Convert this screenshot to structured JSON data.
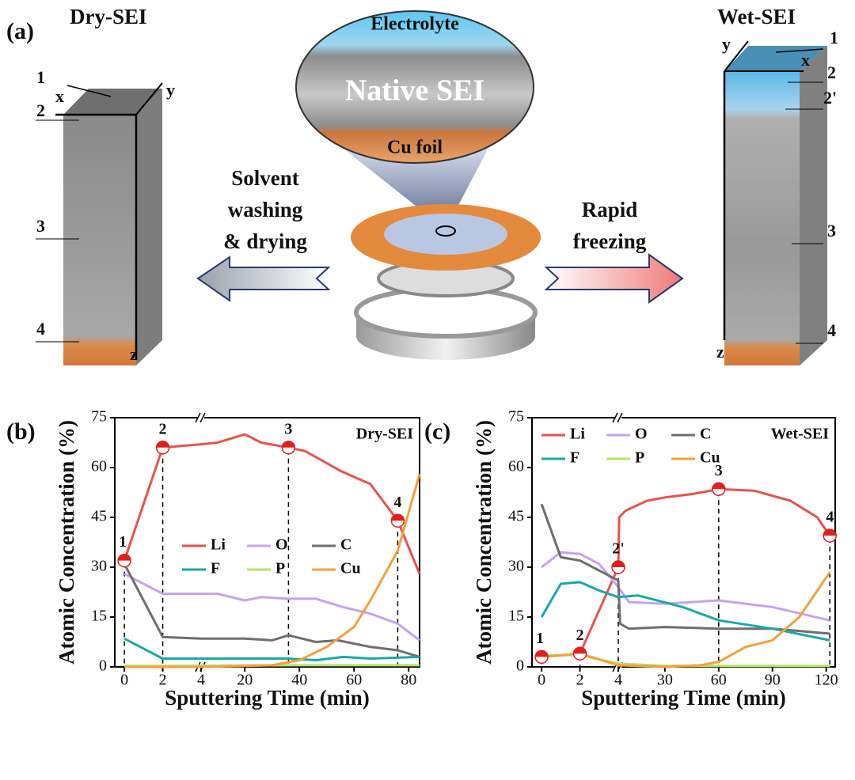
{
  "panel_a": {
    "label": "(a)",
    "dry_title": "Dry-SEI",
    "wet_title": "Wet-SEI",
    "lens": {
      "top": "Electrolyte",
      "middle": "Native SEI",
      "bottom": "Cu foil"
    },
    "left_arrow": [
      "Solvent",
      "washing",
      "& drying"
    ],
    "right_arrow": [
      "Rapid",
      "freezing"
    ],
    "dry_block": {
      "axes": [
        "x",
        "y",
        "z"
      ],
      "levels": [
        "1",
        "2",
        "3",
        "4"
      ]
    },
    "wet_block": {
      "axes": [
        "y",
        "x",
        "z"
      ],
      "levels": [
        "1",
        "2",
        "2'",
        "3",
        "4"
      ]
    }
  },
  "chart_data": [
    {
      "type": "line",
      "panel_label": "(b)",
      "tag": "Dry-SEI",
      "ylabel": "Atomic Concentration (%)",
      "xlabel": "Sputtering Time (min)",
      "x_segments": [
        [
          -0.5,
          4
        ],
        [
          4,
          84
        ]
      ],
      "xticks": [
        0,
        2,
        4,
        20,
        40,
        60,
        80
      ],
      "ylim": [
        0,
        75
      ],
      "yticks": [
        0,
        15,
        30,
        45,
        60,
        75
      ],
      "legend": "center",
      "series": [
        {
          "name": "Li",
          "color": "#e8524f",
          "x": [
            0,
            2,
            4,
            10,
            16,
            20,
            26,
            36,
            42,
            55,
            66,
            76,
            84
          ],
          "values": [
            32,
            66,
            67,
            67.5,
            69,
            70,
            67.5,
            66,
            65,
            59,
            55,
            44,
            28
          ]
        },
        {
          "name": "O",
          "color": "#c7a2f0",
          "x": [
            0,
            2,
            4,
            10,
            20,
            26,
            36,
            46,
            56,
            66,
            76,
            84
          ],
          "values": [
            28,
            22,
            22,
            22,
            20,
            21,
            20.5,
            20.5,
            18,
            16,
            13,
            8
          ]
        },
        {
          "name": "C",
          "color": "#6e6e6e",
          "x": [
            0,
            2,
            4,
            10,
            20,
            30,
            36,
            46,
            54,
            66,
            76,
            84
          ],
          "values": [
            31,
            9,
            8.5,
            8.5,
            8.5,
            8,
            9.5,
            7.5,
            8,
            6,
            5,
            3
          ]
        },
        {
          "name": "F",
          "color": "#1aa9a8",
          "x": [
            0,
            2,
            4,
            20,
            36,
            46,
            56,
            66,
            84
          ],
          "values": [
            8.5,
            2.5,
            2.5,
            2.5,
            2.5,
            2,
            3,
            2.5,
            3
          ]
        },
        {
          "name": "P",
          "color": "#b5e36a",
          "x": [
            0,
            2,
            40,
            84
          ],
          "values": [
            0.3,
            0.3,
            0.5,
            0.5
          ]
        },
        {
          "name": "Cu",
          "color": "#f5a03b",
          "x": [
            0,
            4,
            30,
            40,
            50,
            60,
            66,
            76,
            84
          ],
          "values": [
            0,
            0,
            0.5,
            2,
            6,
            12,
            20,
            35,
            58
          ]
        }
      ],
      "markers": [
        {
          "label": "1",
          "x": 0,
          "y": 32
        },
        {
          "label": "2",
          "x": 2,
          "y": 66
        },
        {
          "label": "3",
          "x": 36,
          "y": 66
        },
        {
          "label": "4",
          "x": 76,
          "y": 44
        }
      ]
    },
    {
      "type": "line",
      "panel_label": "(c)",
      "tag": "Wet-SEI",
      "ylabel": "Atomic Concentration (%)",
      "xlabel": "Sputtering Time (min)",
      "x_segments": [
        [
          -0.5,
          4
        ],
        [
          4,
          125
        ]
      ],
      "xticks": [
        0,
        2,
        4,
        30,
        60,
        90,
        120
      ],
      "ylim": [
        0,
        75
      ],
      "yticks": [
        0,
        15,
        30,
        45,
        60,
        75
      ],
      "legend": "upper left",
      "series": [
        {
          "name": "Li",
          "color": "#e8524f",
          "x": [
            0,
            2,
            4,
            4.5,
            8,
            20,
            30,
            45,
            60,
            80,
            100,
            115,
            122
          ],
          "values": [
            3,
            4,
            30,
            45,
            47,
            50,
            51,
            52,
            53.5,
            53,
            50,
            45,
            39.5
          ]
        },
        {
          "name": "O",
          "color": "#c7a2f0",
          "x": [
            0,
            1,
            2,
            3,
            4,
            10,
            30,
            60,
            90,
            122
          ],
          "values": [
            30,
            34.5,
            34,
            31,
            24,
            19.5,
            19,
            20,
            18,
            14
          ]
        },
        {
          "name": "C",
          "color": "#6e6e6e",
          "x": [
            0,
            1,
            2,
            3,
            4,
            5,
            10,
            30,
            60,
            90,
            122
          ],
          "values": [
            49,
            33,
            32,
            29,
            26,
            13,
            11.5,
            12,
            11.5,
            11.5,
            10
          ]
        },
        {
          "name": "F",
          "color": "#1aa9a8",
          "x": [
            0,
            1,
            2,
            3,
            4,
            15,
            40,
            60,
            90,
            122
          ],
          "values": [
            15,
            25,
            25.5,
            23,
            21,
            21.5,
            18,
            14,
            11.5,
            8
          ]
        },
        {
          "name": "P",
          "color": "#b5e36a",
          "x": [
            0,
            2,
            4,
            30,
            122
          ],
          "values": [
            3.5,
            3.5,
            1,
            0.3,
            0.3
          ]
        },
        {
          "name": "Cu",
          "color": "#f5a03b",
          "x": [
            0,
            2,
            4,
            30,
            50,
            60,
            75,
            90,
            105,
            122
          ],
          "values": [
            3,
            4,
            0.5,
            0,
            0.5,
            1.5,
            6,
            8,
            15,
            28.5
          ]
        }
      ],
      "markers": [
        {
          "label": "1",
          "x": 0,
          "y": 3
        },
        {
          "label": "2",
          "x": 2,
          "y": 4
        },
        {
          "label": "2'",
          "x": 4,
          "y": 30
        },
        {
          "label": "3",
          "x": 60,
          "y": 53.5
        },
        {
          "label": "4",
          "x": 122,
          "y": 39.5
        }
      ]
    }
  ]
}
